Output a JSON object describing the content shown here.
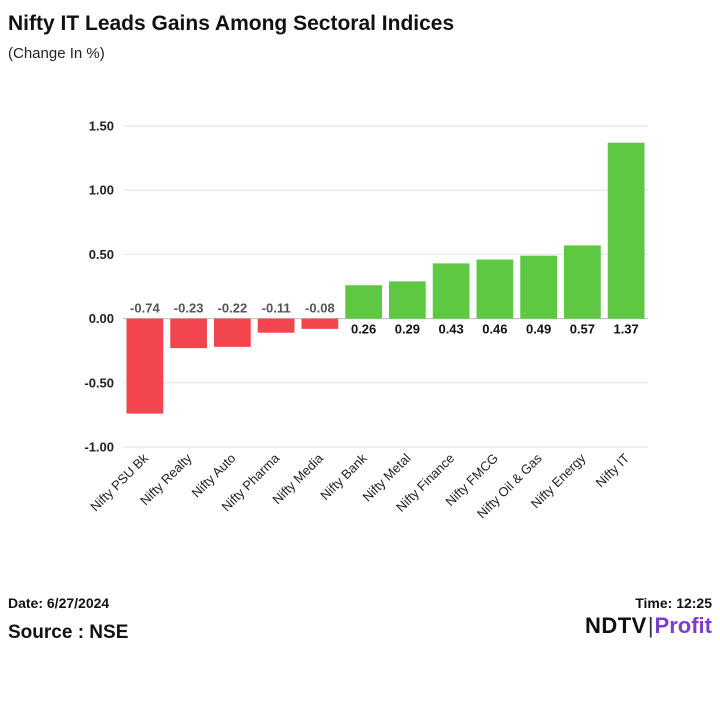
{
  "header": {
    "title": "Nifty IT Leads Gains Among Sectoral Indices",
    "subtitle": "(Change In %)"
  },
  "footer": {
    "date": "Date: 6/27/2024",
    "source": "Source : NSE",
    "time": "Time: 12:25",
    "brand_ndtv": "NDTV",
    "brand_separator": "|",
    "brand_profit": "Profit"
  },
  "colors": {
    "positive": "#5ec843",
    "negative": "#f2464e",
    "grid": "#e2e2e2",
    "axis": "#bbbbbb"
  },
  "chart_data": {
    "type": "bar",
    "title": "Nifty IT Leads Gains Among Sectoral Indices",
    "subtitle": "(Change In %)",
    "xlabel": "",
    "ylabel": "",
    "ylim": [
      -1.0,
      1.5
    ],
    "yticks": [
      1.5,
      1.0,
      0.5,
      0.0,
      -0.5,
      -1.0
    ],
    "ytick_labels": [
      "1.50",
      "1.00",
      "0.50",
      "0.00",
      "-0.50",
      "-1.00"
    ],
    "grid": true,
    "categories": [
      "Nifty PSU Bk",
      "Nifty Realty",
      "Nifty Auto",
      "Nifty Pharma",
      "Nifty Media",
      "Nifty Bank",
      "Nifty Metal",
      "Nifty Finance",
      "Nifty FMCG",
      "Nifty Oil & Gas",
      "Nifty Energy",
      "Nifty IT"
    ],
    "values": [
      -0.74,
      -0.23,
      -0.22,
      -0.11,
      -0.08,
      0.26,
      0.29,
      0.43,
      0.46,
      0.49,
      0.57,
      1.37
    ],
    "data_labels": [
      "-0.74",
      "-0.23",
      "-0.22",
      "-0.11",
      "-0.08",
      "0.26",
      "0.29",
      "0.43",
      "0.46",
      "0.49",
      "0.57",
      "1.37"
    ]
  }
}
